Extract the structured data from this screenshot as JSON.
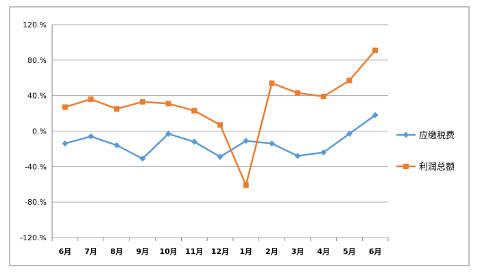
{
  "chart_data": {
    "type": "line",
    "categories": [
      "6月",
      "7月",
      "8月",
      "9月",
      "10月",
      "11月",
      "12月",
      "1月",
      "2月",
      "3月",
      "4月",
      "5月",
      "6月"
    ],
    "series": [
      {
        "name": "应缴税费",
        "color": "#5b9bd5",
        "marker": "diamond",
        "values": [
          -14,
          -6,
          -16,
          -31,
          -3,
          -12,
          -29,
          -11,
          -14,
          -28,
          -24,
          -3,
          18
        ]
      },
      {
        "name": "利润总额",
        "color": "#ed7d31",
        "marker": "square",
        "values": [
          27,
          36,
          25,
          33,
          31,
          23,
          7,
          -61,
          54,
          43,
          39,
          57,
          91
        ]
      }
    ],
    "ylim": [
      -120,
      120
    ],
    "yticks": [
      "120.%",
      "80.%",
      "40.%",
      "0.%",
      "-40.%",
      "-80.%",
      "-120.%"
    ],
    "ytick_values": [
      120,
      80,
      40,
      0,
      -40,
      -80,
      -120
    ],
    "grid": true,
    "legend_position": "right"
  }
}
